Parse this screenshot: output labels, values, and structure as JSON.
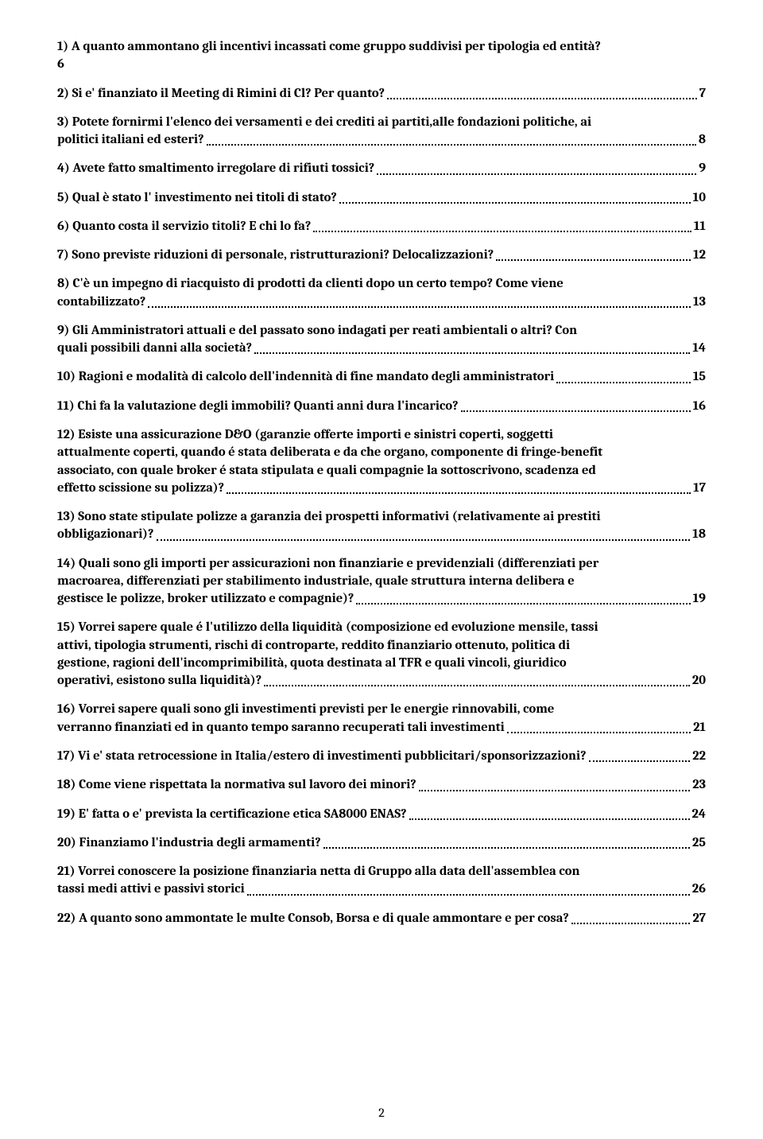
{
  "toc": [
    {
      "lines": [
        "1)   A quanto ammontano gli incentivi incassati come gruppo suddivisi per tipologia  ed entità?"
      ],
      "last": "6",
      "page": "",
      "nodots": true
    },
    {
      "lines": [],
      "last": "2)   Si e' finanziato il Meeting di Rimini di Cl? Per quanto?",
      "page": "7"
    },
    {
      "lines": [
        "3)     Potete fornirmi l'elenco dei versamenti e dei crediti ai partiti,alle fondazioni politiche, ai"
      ],
      "last": "politici italiani ed esteri?",
      "page": "8"
    },
    {
      "lines": [],
      "last": "4)   Avete fatto smaltimento irregolare di rifiuti tossici?",
      "page": "9"
    },
    {
      "lines": [],
      "last": "5)   Qual è stato l' investimento nei titoli di stato?",
      "page": "10"
    },
    {
      "lines": [],
      "last": "6)   Quanto costa il servizio titoli? E chi lo fa?",
      "page": "11"
    },
    {
      "lines": [],
      "last": "7)   Sono previste riduzioni di personale, ristrutturazioni?  Delocalizzazioni?",
      "page": "12"
    },
    {
      "lines": [
        "8)   C'è un impegno di riacquisto di prodotti da clienti dopo un certo tempo? Come viene"
      ],
      "last": "contabilizzato?",
      "page": "13"
    },
    {
      "lines": [
        "9)    Gli Amministratori attuali e del passato sono indagati per reati ambientali o altri? Con"
      ],
      "last": "quali possibili danni alla società?",
      "page": "14"
    },
    {
      "lines": [],
      "last": "10)  Ragioni e modalità di calcolo dell'indennità di fine mandato degli amministratori",
      "page": "15"
    },
    {
      "lines": [],
      "last": "11)  Chi fa la valutazione degli immobili? Quanti anni dura l'incarico?",
      "page": "16"
    },
    {
      "lines": [
        "12)  Esiste una assicurazione D&O (garanzie offerte  importi e sinistri coperti, soggetti",
        "attualmente coperti, quando é stata deliberata e da che organo, componente di fringe-benefit",
        "associato, con quale broker é stata stipulata e quali compagnie la sottoscrivono, scadenza ed"
      ],
      "last": "effetto scissione su polizza)?",
      "page": "17"
    },
    {
      "lines": [
        "13)  Sono state stipulate polizze a garanzia dei prospetti informativi (relativamente ai prestiti"
      ],
      "last": "obbligazionari)?",
      "page": "18"
    },
    {
      "lines": [
        "14)  Quali sono gli importi per assicurazioni non finanziarie e previdenziali (differenziati per",
        "macroarea, differenziati per stabilimento industriale, quale struttura interna delibera e"
      ],
      "last": "gestisce le polizze, broker utilizzato e compagnie)?",
      "page": "19"
    },
    {
      "lines": [
        "15)  Vorrei sapere quale é l'utilizzo della liquidità (composizione ed evoluzione mensile, tassi",
        "attivi, tipologia strumenti, rischi di controparte, reddito finanziario ottenuto, politica di",
        "gestione, ragioni dell'incomprimibilità, quota destinata al TFR e quali vincoli, giuridico"
      ],
      "last": "operativi, esistono sulla liquidità)?",
      "page": "20"
    },
    {
      "lines": [
        "16)  Vorrei sapere quali sono gli investimenti previsti per le energie rinnovabili, come"
      ],
      "last": "verranno finanziati ed in quanto tempo saranno recuperati tali investimenti",
      "page": "21"
    },
    {
      "lines": [],
      "last": "17)  Vi e' stata retrocessione in Italia/estero di investimenti pubblicitari/sponsorizzazioni?",
      "page": "22"
    },
    {
      "lines": [],
      "last": "18)  Come viene rispettata la normativa sul lavoro dei minori?",
      "page": "23"
    },
    {
      "lines": [],
      "last": "19)  E' fatta o e' prevista la certificazione etica  SA8000 ENAS?",
      "page": "24"
    },
    {
      "lines": [],
      "last": "20)  Finanziamo l'industria degli armamenti?",
      "page": "25"
    },
    {
      "lines": [
        "21)  Vorrei conoscere la posizione finanziaria netta di Gruppo alla data dell'assemblea con"
      ],
      "last": "tassi medi attivi e passivi storici",
      "page": "26"
    },
    {
      "lines": [],
      "last": "22)  A quanto sono ammontate le multe Consob, Borsa e di quale ammontare e per cosa?",
      "page": "27"
    }
  ],
  "footer_page": "2"
}
